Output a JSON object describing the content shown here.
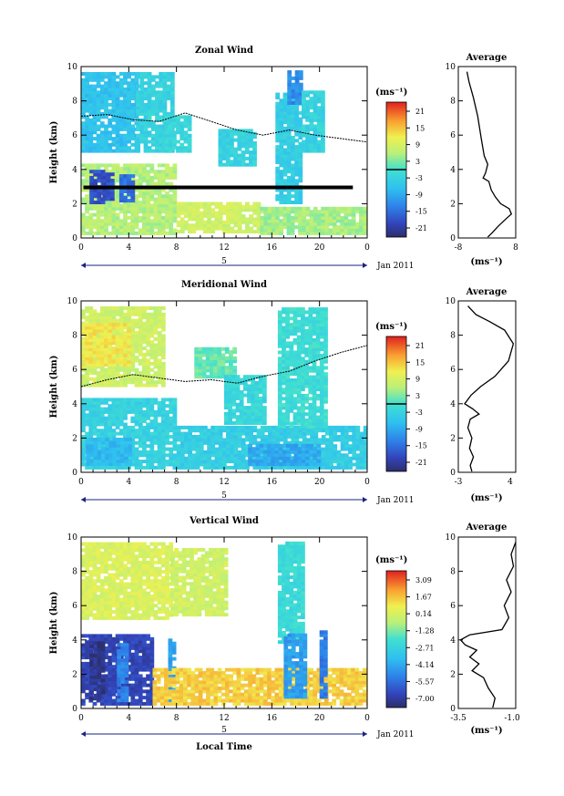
{
  "figure": {
    "xlabel": "Local Time",
    "date_label": "Jan 2011",
    "day_label": "5",
    "avg_title": "Average"
  },
  "chart_data": [
    {
      "type": "heatmap",
      "title": "Zonal Wind",
      "ylabel": "Height (km)",
      "xlabel": "Local Time",
      "x_ticks": [
        "0",
        "4",
        "8",
        "12",
        "16",
        "20",
        "0"
      ],
      "y_ticks": [
        "0",
        "2",
        "4",
        "6",
        "8",
        "10"
      ],
      "xlim": [
        0,
        24
      ],
      "ylim": [
        0,
        10
      ],
      "colorbar": {
        "unit": "(ms⁻¹)",
        "labels": [
          "21",
          "15",
          "9",
          "3",
          "-3",
          "-9",
          "-15",
          "-21"
        ],
        "range": [
          -24,
          24
        ],
        "zero_line": 0
      },
      "regions": [
        {
          "x": [
            0,
            4.6
          ],
          "y": [
            5.0,
            9.6
          ],
          "value": -6
        },
        {
          "x": [
            4.6,
            7.6
          ],
          "y": [
            5.0,
            9.6
          ],
          "value": -3
        },
        {
          "x": [
            0,
            8
          ],
          "y": [
            0.2,
            4.2
          ],
          "value": 6
        },
        {
          "x": [
            0.7,
            1.7
          ],
          "y": [
            2.0,
            3.9
          ],
          "value": -18
        },
        {
          "x": [
            1.8,
            2.6
          ],
          "y": [
            2.2,
            3.8
          ],
          "value": -18
        },
        {
          "x": [
            3.2,
            4.3
          ],
          "y": [
            2.1,
            3.7
          ],
          "value": -15
        },
        {
          "x": [
            8,
            15
          ],
          "y": [
            0.3,
            2.0
          ],
          "value": 8
        },
        {
          "x": [
            15,
            24
          ],
          "y": [
            0.2,
            1.8
          ],
          "value": 5
        },
        {
          "x": [
            16.3,
            18.5
          ],
          "y": [
            2.0,
            8.4
          ],
          "value": -4
        },
        {
          "x": [
            17.3,
            18.5
          ],
          "y": [
            7.8,
            9.6
          ],
          "value": -12
        },
        {
          "x": [
            18.5,
            20.2
          ],
          "y": [
            5.0,
            8.5
          ],
          "value": -3
        },
        {
          "x": [
            7.0,
            9.0
          ],
          "y": [
            5.0,
            7.0
          ],
          "value": -2
        },
        {
          "x": [
            11.5,
            14.5
          ],
          "y": [
            4.2,
            6.2
          ],
          "value": -3
        }
      ],
      "contour_y": [
        7.1,
        7.2,
        6.9,
        6.8,
        7.3,
        6.8,
        6.3,
        6.0,
        6.3,
        6.0,
        5.8,
        5.6
      ],
      "bar_y": 2.95,
      "bar_x": [
        0.2,
        22.8
      ],
      "average_profile": {
        "xlim": [
          -8,
          8
        ],
        "x_ticks": [
          "-8",
          "8"
        ],
        "xlabel": "(ms⁻¹)",
        "points": [
          [
            -5.6,
            9.7
          ],
          [
            -5.0,
            9.1
          ],
          [
            -3.8,
            8.2
          ],
          [
            -2.6,
            7.1
          ],
          [
            -1.6,
            5.8
          ],
          [
            -0.8,
            4.8
          ],
          [
            0.2,
            4.3
          ],
          [
            -0.4,
            3.8
          ],
          [
            -1.1,
            3.5
          ],
          [
            0.5,
            3.3
          ],
          [
            1.2,
            2.8
          ],
          [
            2.3,
            2.4
          ],
          [
            3.8,
            2.0
          ],
          [
            6.2,
            1.7
          ],
          [
            6.8,
            1.4
          ],
          [
            5.2,
            1.1
          ],
          [
            3.2,
            0.7
          ],
          [
            1.4,
            0.3
          ],
          [
            0.2,
            0.05
          ]
        ]
      }
    },
    {
      "type": "heatmap",
      "title": "Meridional Wind",
      "ylabel": "Height (km)",
      "xlabel": "Local Time",
      "x_ticks": [
        "0",
        "4",
        "8",
        "12",
        "16",
        "20",
        "0"
      ],
      "y_ticks": [
        "0",
        "2",
        "4",
        "6",
        "8",
        "10"
      ],
      "xlim": [
        0,
        24
      ],
      "ylim": [
        0,
        10
      ],
      "colorbar": {
        "unit": "(ms⁻¹)",
        "labels": [
          "21",
          "15",
          "9",
          "3",
          "-3",
          "-9",
          "-15",
          "-21"
        ],
        "range": [
          -24,
          24
        ],
        "zero_line": 0
      },
      "regions": [
        {
          "x": [
            0,
            7
          ],
          "y": [
            5.0,
            9.6
          ],
          "value": 8
        },
        {
          "x": [
            0,
            4
          ],
          "y": [
            6.2,
            8.6
          ],
          "value": 12
        },
        {
          "x": [
            0,
            8
          ],
          "y": [
            0.2,
            4.2
          ],
          "value": -3
        },
        {
          "x": [
            0.4,
            4.2
          ],
          "y": [
            0.4,
            2.0
          ],
          "value": -7
        },
        {
          "x": [
            8,
            24
          ],
          "y": [
            0.2,
            2.6
          ],
          "value": -4
        },
        {
          "x": [
            14,
            20
          ],
          "y": [
            0.4,
            1.6
          ],
          "value": -9
        },
        {
          "x": [
            16.5,
            20.5
          ],
          "y": [
            2.6,
            9.6
          ],
          "value": -1
        },
        {
          "x": [
            9.5,
            13
          ],
          "y": [
            5.5,
            7.2
          ],
          "value": 2
        },
        {
          "x": [
            12,
            15.5
          ],
          "y": [
            2.8,
            5.5
          ],
          "value": -2
        }
      ],
      "contour_y": [
        5.0,
        5.4,
        5.7,
        5.5,
        5.3,
        5.4,
        5.2,
        5.6,
        5.9,
        6.5,
        7.0,
        7.4
      ],
      "average_profile": {
        "xlim": [
          -3,
          4.2
        ],
        "x_ticks": [
          "-3",
          "4"
        ],
        "xlabel": "(ms⁻¹)",
        "points": [
          [
            -1.8,
            9.7
          ],
          [
            -0.8,
            9.2
          ],
          [
            0.9,
            8.8
          ],
          [
            2.8,
            8.3
          ],
          [
            3.9,
            7.5
          ],
          [
            3.3,
            6.5
          ],
          [
            1.6,
            5.6
          ],
          [
            -0.2,
            5.0
          ],
          [
            -1.4,
            4.5
          ],
          [
            -2.2,
            4.0
          ],
          [
            -1.2,
            3.7
          ],
          [
            -0.4,
            3.4
          ],
          [
            -1.5,
            3.1
          ],
          [
            -1.8,
            2.6
          ],
          [
            -1.3,
            2.0
          ],
          [
            -1.6,
            1.4
          ],
          [
            -1.1,
            0.9
          ],
          [
            -1.5,
            0.4
          ],
          [
            -1.3,
            0.05
          ]
        ]
      }
    },
    {
      "type": "heatmap",
      "title": "Vertical Wind",
      "ylabel": "Height (km)",
      "xlabel": "Local Time",
      "x_ticks": [
        "0",
        "4",
        "8",
        "12",
        "16",
        "20",
        "0"
      ],
      "y_ticks": [
        "0",
        "2",
        "4",
        "6",
        "8",
        "10"
      ],
      "xlim": [
        0,
        24
      ],
      "ylim": [
        0,
        10
      ],
      "colorbar": {
        "unit": "(ms⁻¹)",
        "labels": [
          "3.09",
          "1.67",
          "0.14",
          "-1.28",
          "-2.71",
          "-4.14",
          "-5.57",
          "-7.00"
        ],
        "range": [
          -7.7,
          3.8
        ]
      },
      "regions": [
        {
          "x": [
            0,
            7.5
          ],
          "y": [
            5.2,
            9.6
          ],
          "value": 0.3
        },
        {
          "x": [
            7.5,
            12
          ],
          "y": [
            5.4,
            9.2
          ],
          "value": 0.0
        },
        {
          "x": [
            0,
            6
          ],
          "y": [
            0.2,
            4.3
          ],
          "value": -6.6
        },
        {
          "x": [
            0.7,
            1.8
          ],
          "y": [
            0.5,
            3.9
          ],
          "value": -7.3
        },
        {
          "x": [
            3.0,
            3.8
          ],
          "y": [
            0.4,
            3.8
          ],
          "value": -5.0
        },
        {
          "x": [
            7.3,
            7.9
          ],
          "y": [
            0.3,
            4.0
          ],
          "value": -4.2
        },
        {
          "x": [
            6,
            24
          ],
          "y": [
            0.2,
            2.3
          ],
          "value": 1.4
        },
        {
          "x": [
            16.5,
            18.6
          ],
          "y": [
            3.8,
            9.6
          ],
          "value": -2.3
        },
        {
          "x": [
            17.0,
            18.8
          ],
          "y": [
            0.6,
            4.3
          ],
          "value": -4.4
        },
        {
          "x": [
            20,
            20.6
          ],
          "y": [
            0.6,
            4.4
          ],
          "value": -5.2
        }
      ],
      "average_profile": {
        "xlim": [
          -3.5,
          -1.0
        ],
        "x_ticks": [
          "-3.5",
          "-1.0"
        ],
        "xlabel": "(ms⁻¹)",
        "points": [
          [
            -1.0,
            9.7
          ],
          [
            -1.2,
            9.0
          ],
          [
            -1.1,
            8.3
          ],
          [
            -1.4,
            7.5
          ],
          [
            -1.2,
            6.8
          ],
          [
            -1.5,
            6.0
          ],
          [
            -1.3,
            5.3
          ],
          [
            -1.6,
            4.6
          ],
          [
            -3.0,
            4.3
          ],
          [
            -3.4,
            4.0
          ],
          [
            -3.2,
            3.7
          ],
          [
            -2.7,
            3.4
          ],
          [
            -3.0,
            3.0
          ],
          [
            -2.6,
            2.6
          ],
          [
            -2.9,
            2.2
          ],
          [
            -2.4,
            1.8
          ],
          [
            -2.2,
            1.2
          ],
          [
            -1.9,
            0.6
          ],
          [
            -2.0,
            0.05
          ]
        ]
      }
    }
  ]
}
